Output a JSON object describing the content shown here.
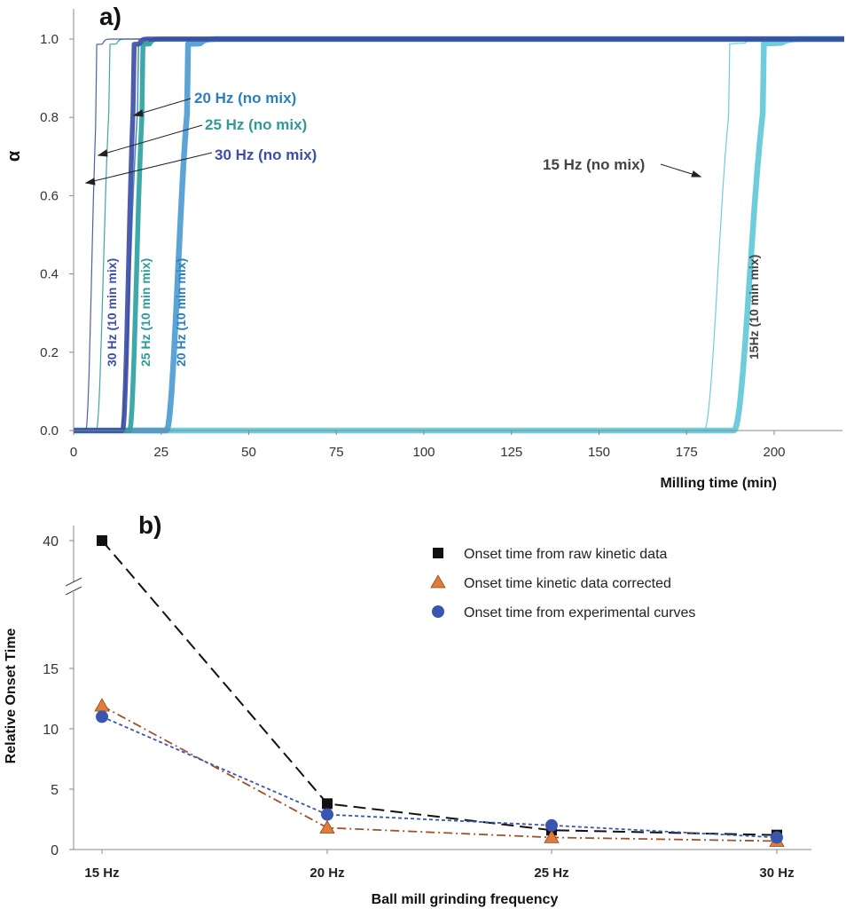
{
  "chart_data": [
    {
      "type": "line",
      "panel_label": "a)",
      "xlabel": "Milling time (min)",
      "ylabel": "α",
      "xlim": [
        0,
        220
      ],
      "ylim": [
        0,
        1.0
      ],
      "xticks": [
        0,
        25,
        50,
        75,
        100,
        125,
        150,
        175,
        200
      ],
      "yticks": [
        0.0,
        0.2,
        0.4,
        0.6,
        0.8,
        1.0
      ],
      "ytick_labels": [
        "0.0",
        "0.2",
        "0.4",
        "0.6",
        "0.8",
        "1.0"
      ],
      "grid": false,
      "series": [
        {
          "key": "s30nomix",
          "color": "#3b4fa8",
          "width": 1.2,
          "onset": 3.5,
          "rise": 2.5
        },
        {
          "key": "s30mix",
          "color": "#3a4aa3",
          "width": 5.5,
          "onset": 14,
          "rise": 2.5
        },
        {
          "key": "s25nomix",
          "color": "#2e9a9a",
          "width": 1.2,
          "onset": 6.5,
          "rise": 3
        },
        {
          "key": "s25mix",
          "color": "#2aa0a0",
          "width": 5.5,
          "onset": 16,
          "rise": 3
        },
        {
          "key": "s20nomix",
          "color": "#2a7fc0",
          "width": 1.5,
          "onset": 13.5,
          "rise": 4
        },
        {
          "key": "s20mix",
          "color": "#4a9ad0",
          "width": 6.5,
          "onset": 26.5,
          "rise": 5
        },
        {
          "key": "s15nomix",
          "color": "#62c7cf",
          "width": 1.2,
          "onset": 180,
          "rise": 6
        },
        {
          "key": "s15mix",
          "color": "#5ec8d6",
          "width": 6.5,
          "onset": 188.5,
          "rise": 7
        }
      ],
      "annotations": [
        {
          "text": "20 Hz (no mix)",
          "color": "#2a7fc0"
        },
        {
          "text": "25 Hz (no mix)",
          "color": "#2e9a9a"
        },
        {
          "text": "30 Hz (no mix)",
          "color": "#3b4fa8"
        },
        {
          "text": "15 Hz (no mix)",
          "color": "#444444"
        },
        {
          "text": "30 Hz (10 min mix)",
          "color": "#3b4fa8"
        },
        {
          "text": "25 Hz (10 min mix)",
          "color": "#2e9a9a"
        },
        {
          "text": "20 Hz (10 min mix)",
          "color": "#2a7fc0"
        },
        {
          "text": "15Hz (10 min  mix)",
          "color": "#444444"
        }
      ]
    },
    {
      "type": "line",
      "panel_label": "b)",
      "xlabel": "Ball mill grinding frequency",
      "ylabel": "Relative Onset Time",
      "categories": [
        "15 Hz",
        "20 Hz",
        "25 Hz",
        "30 Hz"
      ],
      "yticks": [
        0,
        5,
        10,
        15,
        40
      ],
      "ytick_labels": [
        "0",
        "5",
        "10",
        "15",
        "40"
      ],
      "broken_axis": true,
      "grid": false,
      "legend_position": "top-right",
      "series": [
        {
          "name": "Onset time from raw kinetic data",
          "marker": "square",
          "color": "#111111",
          "line_color": "#111111",
          "dash": "14,7",
          "values": [
            40,
            3.8,
            1.6,
            1.2
          ]
        },
        {
          "name": "Onset time kinetic data corrected",
          "marker": "triangle",
          "color": "#e07b39",
          "line_color": "#a0522d",
          "dash": "10,4,2,4",
          "values": [
            11.9,
            1.8,
            1.0,
            0.7
          ]
        },
        {
          "name": "Onset time from experimental curves",
          "marker": "circle",
          "color": "#3a55b0",
          "line_color": "#3a55b0",
          "dash": "4,3",
          "values": [
            11.0,
            2.9,
            2.0,
            1.0
          ]
        }
      ]
    }
  ]
}
